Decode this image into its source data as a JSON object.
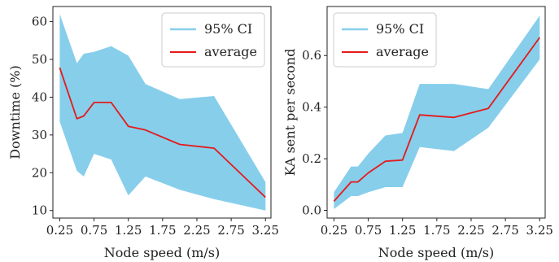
{
  "colors": {
    "ci": "#87ceeb",
    "average": "#e41a1c",
    "axis": "#222222",
    "background": "#ffffff"
  },
  "chart_data": [
    {
      "type": "area",
      "xlabel": "Node speed (m/s)",
      "ylabel": "Downtime (%)",
      "xlim": [
        0.15,
        3.33
      ],
      "ylim": [
        8,
        64
      ],
      "xticks": [
        0.25,
        0.75,
        1.25,
        1.75,
        2.25,
        2.75,
        3.25
      ],
      "xtick_labels": [
        "0.25",
        "0.75",
        "1.25",
        "1.75",
        "2.25",
        "2.75",
        "3.25"
      ],
      "yticks": [
        10,
        20,
        30,
        40,
        50,
        60
      ],
      "ytick_labels": [
        "10",
        "20",
        "30",
        "40",
        "50",
        "60"
      ],
      "legend": {
        "position": "top-right",
        "ci_label": "95% CI",
        "average_label": "average"
      },
      "x": [
        0.25,
        0.5,
        0.6,
        0.75,
        1.0,
        1.25,
        1.5,
        2.0,
        2.5,
        3.25
      ],
      "series": [
        {
          "name": "95% CI",
          "kind": "band",
          "lower": [
            33.5,
            20.5,
            19.0,
            25.0,
            23.5,
            14.0,
            19.0,
            15.5,
            13.0,
            10.0
          ],
          "upper": [
            62.0,
            49.0,
            51.5,
            52.0,
            53.5,
            51.0,
            43.5,
            39.5,
            40.3,
            17.5
          ]
        },
        {
          "name": "average",
          "kind": "line",
          "values": [
            47.8,
            34.3,
            35.0,
            38.6,
            38.6,
            32.3,
            31.3,
            27.5,
            26.5,
            13.5
          ]
        }
      ]
    },
    {
      "type": "area",
      "xlabel": "Node speed (m/s)",
      "ylabel": "KA sent per second",
      "xlim": [
        0.15,
        3.33
      ],
      "ylim": [
        -0.03,
        0.79
      ],
      "xticks": [
        0.25,
        0.75,
        1.25,
        1.75,
        2.25,
        2.75,
        3.25
      ],
      "xtick_labels": [
        "0.25",
        "0.75",
        "1.25",
        "1.75",
        "2.25",
        "2.75",
        "3.25"
      ],
      "yticks": [
        0.0,
        0.2,
        0.4,
        0.6
      ],
      "ytick_labels": [
        "0.0",
        "0.2",
        "0.4",
        "0.6"
      ],
      "legend": {
        "position": "top-left",
        "ci_label": "95% CI",
        "average_label": "average"
      },
      "x": [
        0.25,
        0.5,
        0.6,
        0.75,
        1.0,
        1.25,
        1.5,
        2.0,
        2.5,
        3.25
      ],
      "series": [
        {
          "name": "95% CI",
          "kind": "band",
          "lower": [
            0.005,
            0.055,
            0.055,
            0.07,
            0.09,
            0.09,
            0.245,
            0.23,
            0.32,
            0.585
          ],
          "upper": [
            0.07,
            0.17,
            0.17,
            0.22,
            0.29,
            0.3,
            0.49,
            0.49,
            0.47,
            0.755
          ]
        },
        {
          "name": "average",
          "kind": "line",
          "values": [
            0.035,
            0.11,
            0.11,
            0.145,
            0.19,
            0.195,
            0.37,
            0.36,
            0.395,
            0.67
          ]
        }
      ]
    }
  ]
}
